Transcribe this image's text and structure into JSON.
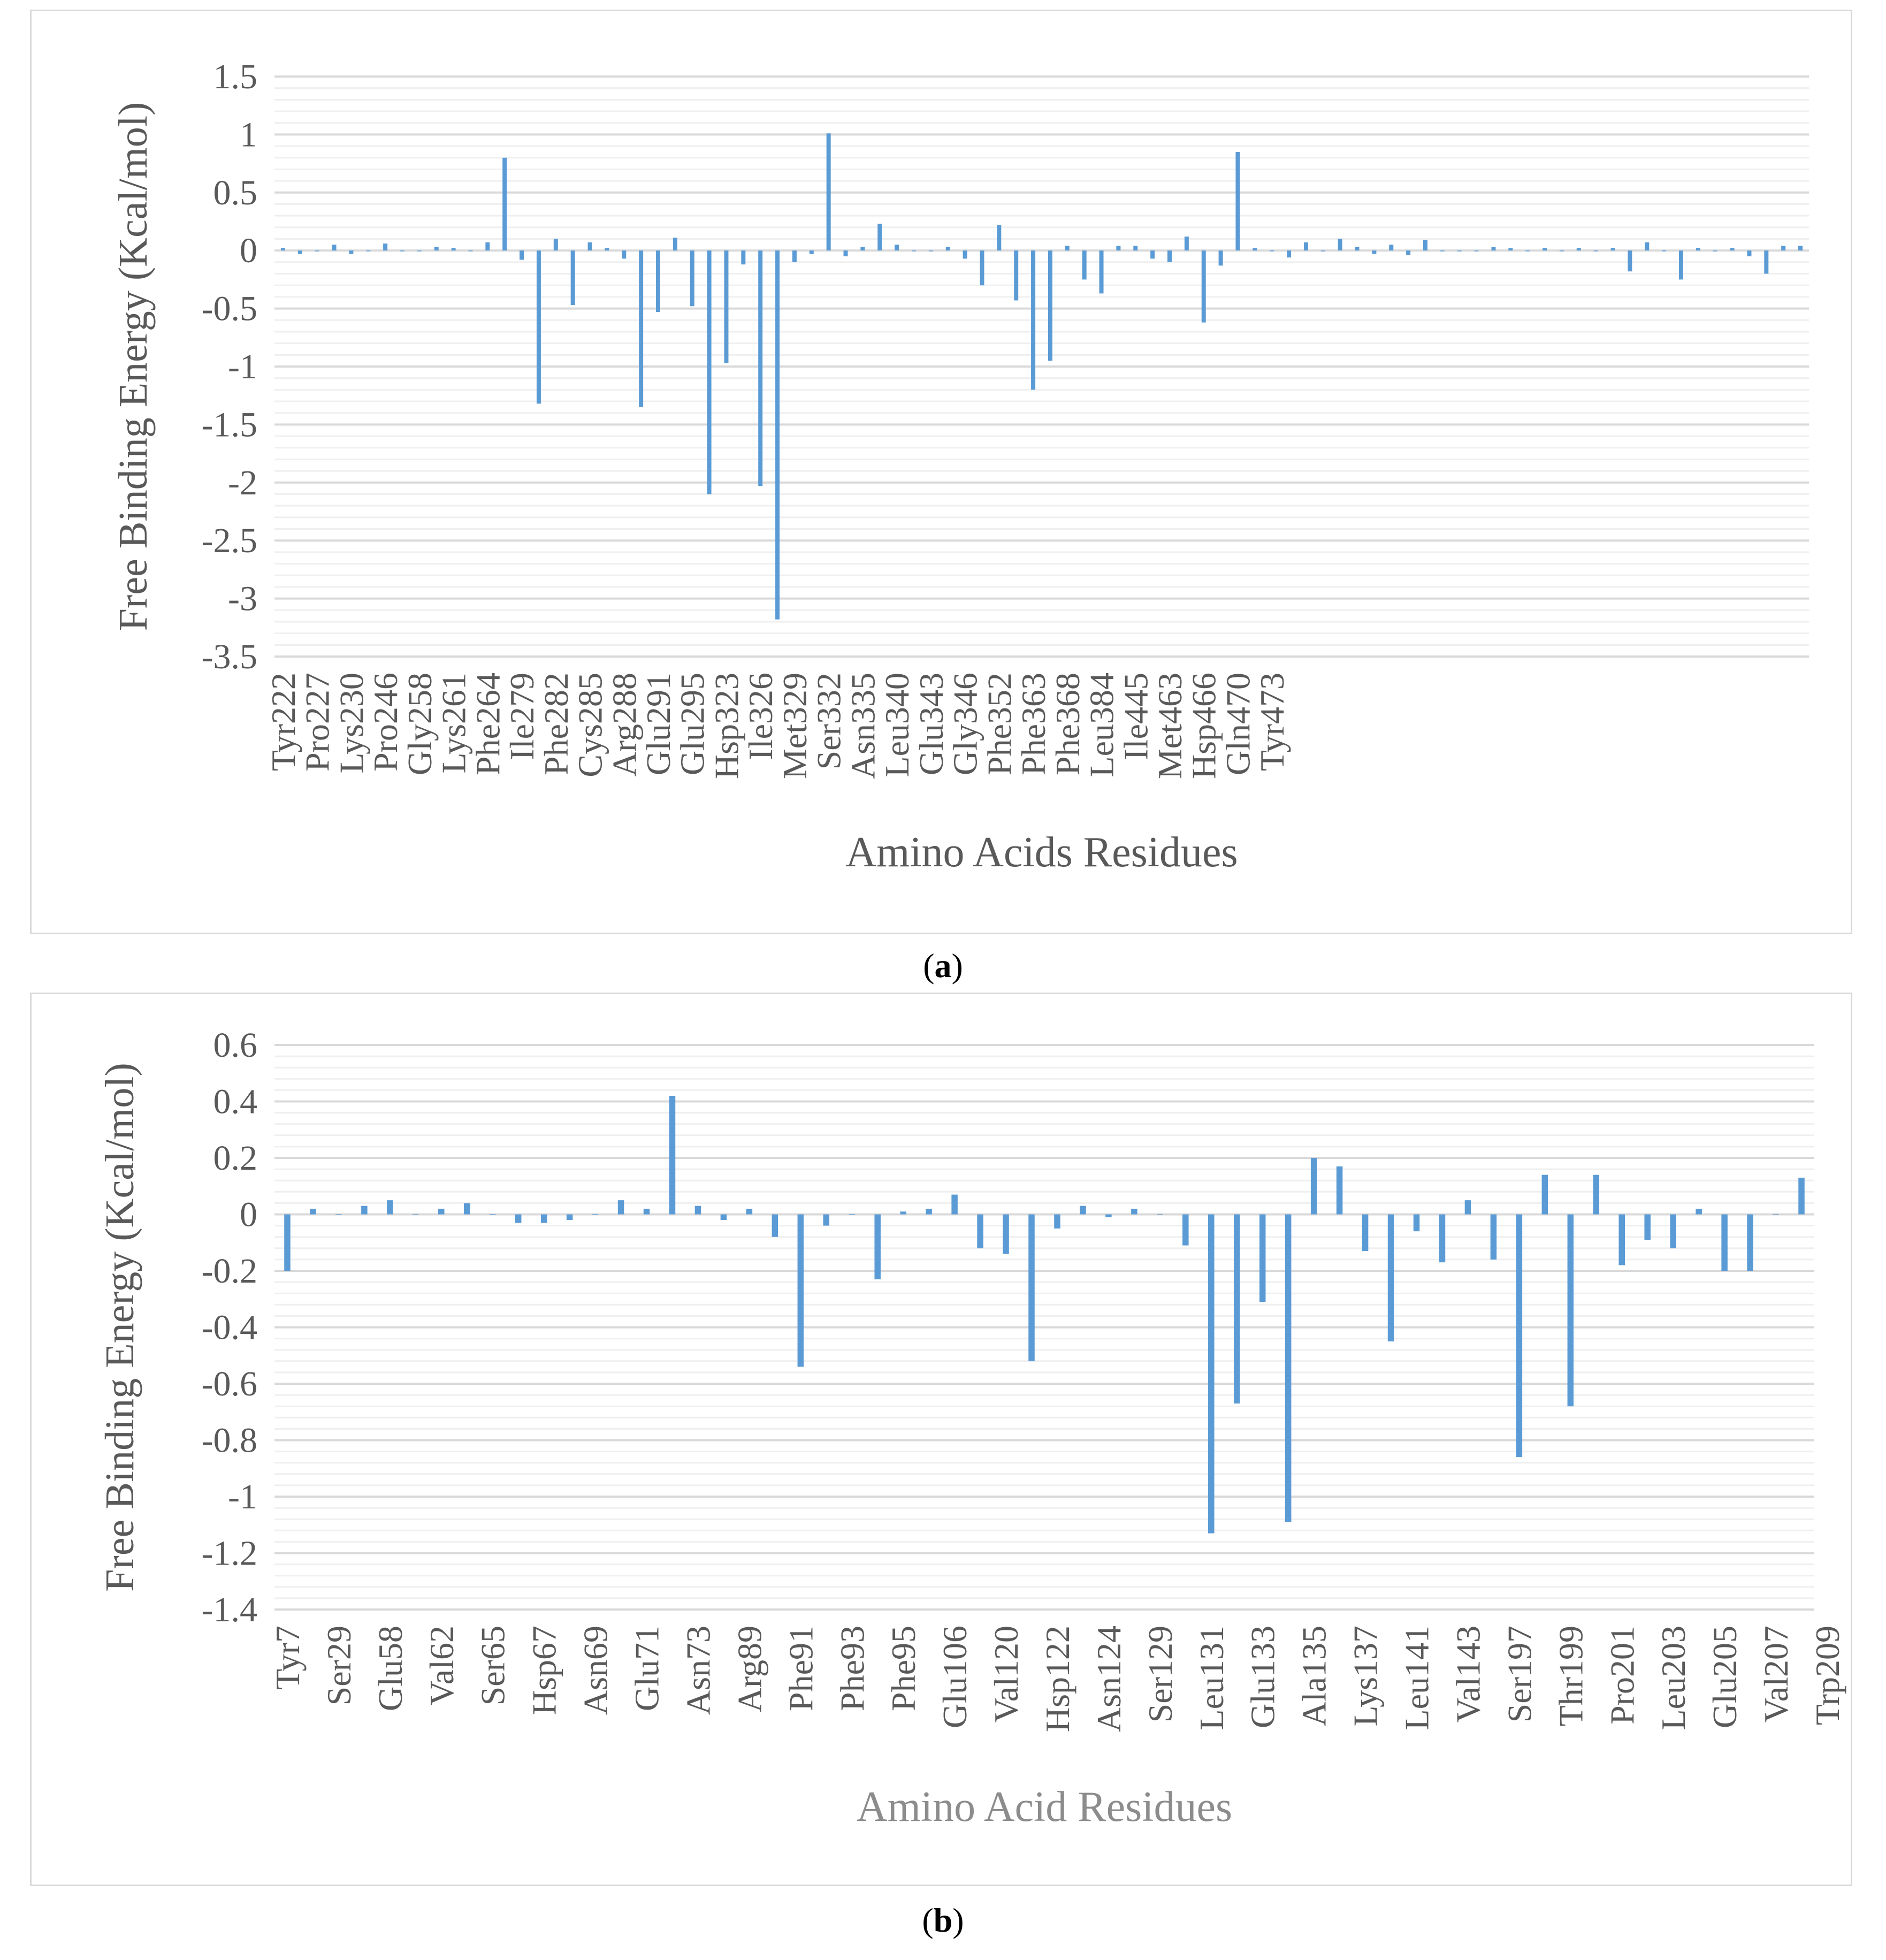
{
  "chart_data": [
    {
      "type": "bar",
      "panel_label": "a",
      "ylabel": "Free Binding Energy (Kcal/mol)",
      "xlabel": "Amino Acids Residues",
      "ylim": [
        -3.5,
        1.5
      ],
      "yticks": [
        1.5,
        1,
        0.5,
        0,
        -0.5,
        -1,
        -1.5,
        -2,
        -2.5,
        -3,
        -3.5
      ],
      "grid": true,
      "legend": "none",
      "bar_color": "#5b9bd5",
      "tick_labels": [
        "Tyr222",
        "Pro227",
        "Lys230",
        "Pro246",
        "Gly258",
        "Lys261",
        "Phe264",
        "Ile279",
        "Phe282",
        "Cys285",
        "Arg288",
        "Glu291",
        "Glu295",
        "Hsp323",
        "Ile326",
        "Met329",
        "Ser332",
        "Asn335",
        "Leu340",
        "Glu343",
        "Gly346",
        "Phe352",
        "Phe363",
        "Phe368",
        "Leu384",
        "Ile445",
        "Met463",
        "Hsp466",
        "Gln470",
        "Tyr473"
      ],
      "values": [
        0.02,
        -0.03,
        0,
        0.05,
        -0.03,
        0,
        0.06,
        0,
        0,
        0.03,
        0.02,
        0,
        0.07,
        0.8,
        -0.08,
        -1.32,
        0.1,
        -0.47,
        0.07,
        0.02,
        -0.07,
        -1.35,
        -0.53,
        0.11,
        -0.48,
        -2.1,
        -0.97,
        -0.12,
        -2.03,
        -3.18,
        -0.1,
        -0.03,
        1.01,
        -0.05,
        0.03,
        0.23,
        0.05,
        0,
        0,
        0.03,
        -0.07,
        -0.3,
        0.22,
        -0.43,
        -1.2,
        -0.95,
        0.04,
        -0.25,
        -0.37,
        0.04,
        0.04,
        -0.07,
        -0.1,
        0.12,
        -0.62,
        -0.13,
        0.85,
        0.02,
        0,
        -0.06,
        0.07,
        0,
        0.1,
        0.03,
        -0.03,
        0.05,
        -0.04,
        0.09,
        0,
        0,
        0,
        0.03,
        0.02,
        0,
        0.02,
        0,
        0.02,
        0,
        0.02,
        -0.18,
        0.07,
        0,
        -0.25,
        0.02,
        0,
        0.02,
        -0.05,
        -0.2,
        0.04,
        0.04
      ]
    },
    {
      "type": "bar",
      "panel_label": "b",
      "ylabel": "Free Binding Energy (Kcal/mol)",
      "xlabel": "Amino Acid Residues",
      "ylim": [
        -1.4,
        0.6
      ],
      "yticks": [
        0.6,
        0.4,
        0.2,
        0,
        -0.2,
        -0.4,
        -0.6,
        -0.8,
        -1,
        -1.2,
        -1.4
      ],
      "grid": true,
      "legend": "none",
      "bar_color": "#5b9bd5",
      "tick_labels": [
        "Tyr7",
        "Ser29",
        "Glu58",
        "Val62",
        "Ser65",
        "Hsp67",
        "Asn69",
        "Glu71",
        "Asn73",
        "Arg89",
        "Phe91",
        "Phe93",
        "Phe95",
        "Glu106",
        "Val120",
        "Hsp122",
        "Asn124",
        "Ser129",
        "Leu131",
        "Glu133",
        "Ala135",
        "Lys137",
        "Leu141",
        "Val143",
        "Ser197",
        "Thr199",
        "Pro201",
        "Leu203",
        "Glu205",
        "Val207",
        "Trp209"
      ],
      "values": [
        -0.2,
        0.02,
        0,
        0.03,
        0.05,
        0,
        0.02,
        0.04,
        0,
        -0.03,
        -0.03,
        -0.02,
        0,
        0.05,
        0.02,
        0.42,
        0.03,
        -0.02,
        0.02,
        -0.08,
        -0.54,
        -0.04,
        0,
        -0.23,
        0.01,
        0.02,
        0.07,
        -0.12,
        -0.14,
        -0.52,
        -0.05,
        0.03,
        -0.01,
        0.02,
        0,
        -0.11,
        -1.13,
        -0.67,
        -0.31,
        -1.09,
        0.2,
        0.17,
        -0.13,
        -0.45,
        -0.06,
        -0.17,
        0.05,
        -0.16,
        -0.86,
        0.14,
        -0.68,
        0.14,
        -0.18,
        -0.09,
        -0.12,
        0.02,
        -0.2,
        -0.2,
        0,
        0.13
      ]
    }
  ]
}
